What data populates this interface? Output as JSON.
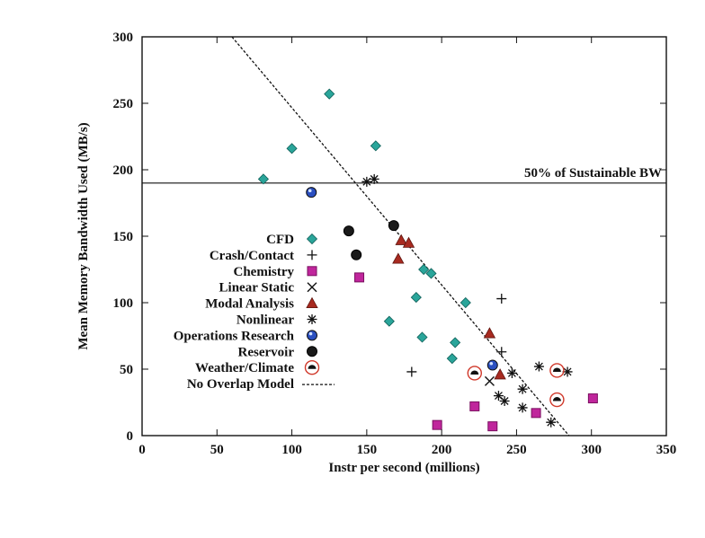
{
  "chart_data": {
    "type": "scatter",
    "title": "",
    "xlabel": "Instr per second (millions)",
    "ylabel": "Mean Memory Bandwidth Used (MB/s)",
    "xlim": [
      0,
      350
    ],
    "ylim": [
      0,
      300
    ],
    "xticks": [
      0,
      50,
      100,
      150,
      200,
      250,
      300,
      350
    ],
    "yticks": [
      0,
      50,
      100,
      150,
      200,
      250,
      300
    ],
    "grid": false,
    "legend_position": "left-center",
    "reference_line": {
      "label": "50% of Sustainable BW",
      "y": 190
    },
    "model_line": {
      "name": "No Overlap Model",
      "x": [
        60,
        285
      ],
      "y": [
        300,
        0
      ]
    },
    "series": [
      {
        "name": "CFD",
        "marker": "diamond",
        "color": "#2aa59a",
        "points": [
          [
            81,
            193
          ],
          [
            100,
            216
          ],
          [
            125,
            257
          ],
          [
            156,
            218
          ],
          [
            183,
            104
          ],
          [
            188,
            125
          ],
          [
            193,
            122
          ],
          [
            165,
            86
          ],
          [
            187,
            74
          ],
          [
            207,
            58
          ],
          [
            209,
            70
          ],
          [
            216,
            100
          ]
        ]
      },
      {
        "name": "Crash/Contact",
        "marker": "plus",
        "color": "#111111",
        "points": [
          [
            180,
            48
          ],
          [
            240,
            103
          ],
          [
            240,
            63
          ]
        ]
      },
      {
        "name": "Chemistry",
        "marker": "square",
        "color": "#c0269c",
        "points": [
          [
            145,
            119
          ],
          [
            197,
            8
          ],
          [
            222,
            22
          ],
          [
            234,
            7
          ],
          [
            263,
            17
          ],
          [
            301,
            28
          ]
        ]
      },
      {
        "name": "Linear Static",
        "marker": "cross",
        "color": "#111111",
        "points": [
          [
            232,
            41
          ]
        ]
      },
      {
        "name": "Modal Analysis",
        "marker": "triangle",
        "color": "#a82a20",
        "points": [
          [
            173,
            147
          ],
          [
            178,
            145
          ],
          [
            171,
            133
          ],
          [
            232,
            77
          ],
          [
            239,
            46
          ]
        ]
      },
      {
        "name": "Nonlinear",
        "marker": "asterisk",
        "color": "#111111",
        "points": [
          [
            150,
            191
          ],
          [
            155,
            193
          ],
          [
            238,
            30
          ],
          [
            242,
            26
          ],
          [
            247,
            47
          ],
          [
            254,
            35
          ],
          [
            254,
            21
          ],
          [
            265,
            52
          ],
          [
            284,
            48
          ],
          [
            273,
            10
          ]
        ]
      },
      {
        "name": "Operations Research",
        "marker": "circle-blue",
        "color": "#2a4fc0",
        "points": [
          [
            113,
            183
          ],
          [
            234,
            53
          ]
        ]
      },
      {
        "name": "Reservoir",
        "marker": "circle-black",
        "color": "#111111",
        "points": [
          [
            168,
            158
          ],
          [
            138,
            154
          ],
          [
            143,
            136
          ]
        ]
      },
      {
        "name": "Weather/Climate",
        "marker": "weather",
        "color": "#d0382a",
        "points": [
          [
            222,
            47
          ],
          [
            277,
            49
          ],
          [
            277,
            27
          ]
        ]
      }
    ]
  }
}
